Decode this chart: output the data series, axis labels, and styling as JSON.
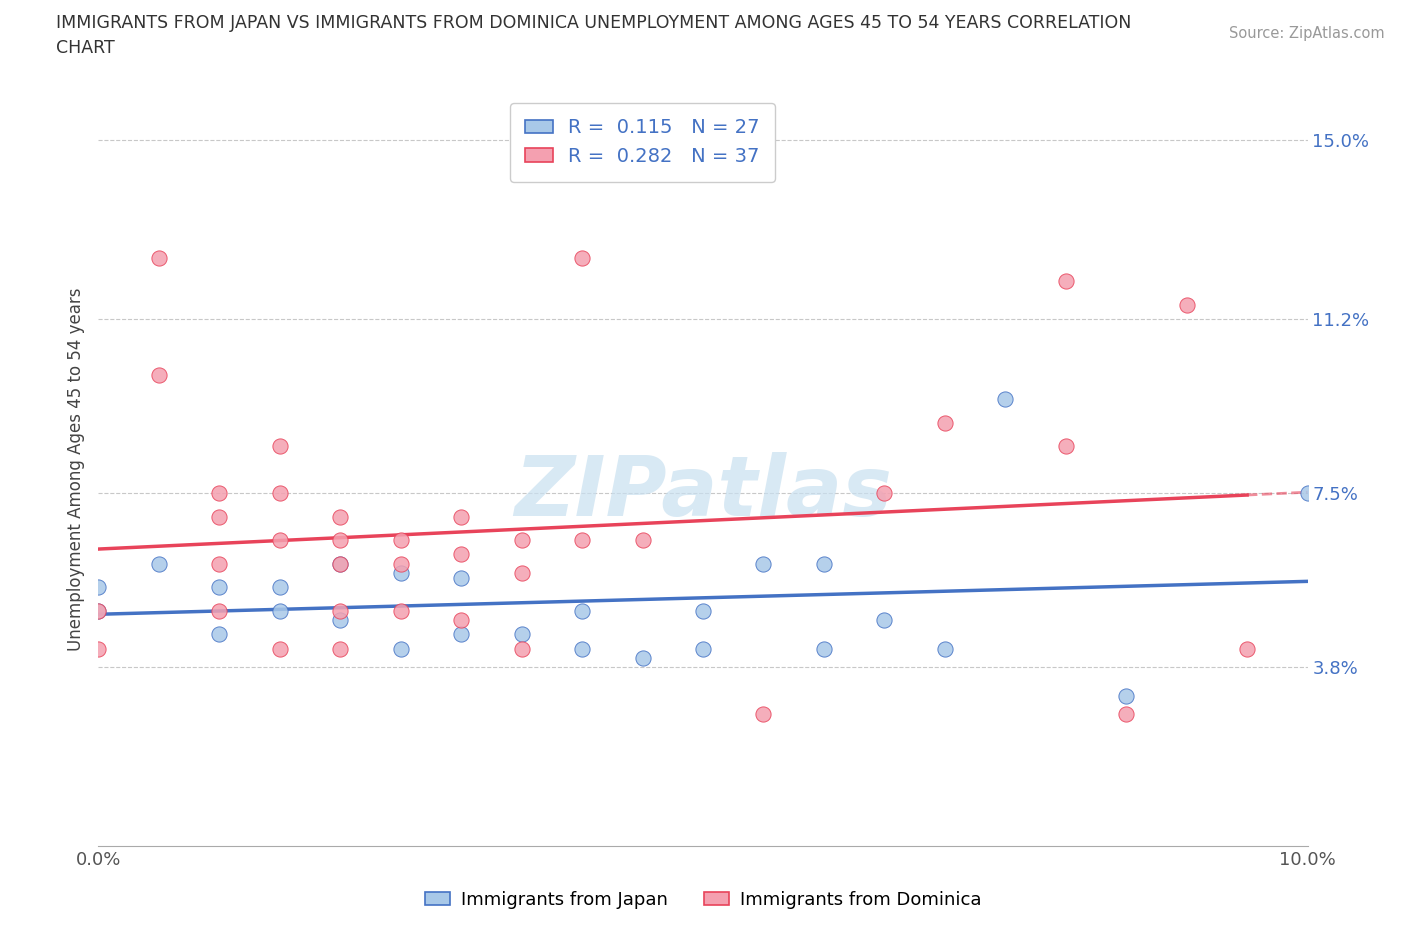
{
  "title_line1": "IMMIGRANTS FROM JAPAN VS IMMIGRANTS FROM DOMINICA UNEMPLOYMENT AMONG AGES 45 TO 54 YEARS CORRELATION",
  "title_line2": "CHART",
  "source": "Source: ZipAtlas.com",
  "ylabel": "Unemployment Among Ages 45 to 54 years",
  "xlim": [
    0.0,
    0.1
  ],
  "ylim": [
    0.0,
    0.16
  ],
  "xticks": [
    0.0,
    0.02,
    0.04,
    0.06,
    0.08,
    0.1
  ],
  "xticklabels": [
    "0.0%",
    "",
    "",
    "",
    "",
    "10.0%"
  ],
  "ytick_positions": [
    0.038,
    0.075,
    0.112,
    0.15
  ],
  "ytick_labels": [
    "3.8%",
    "7.5%",
    "11.2%",
    "15.0%"
  ],
  "japan_R": 0.115,
  "japan_N": 27,
  "dominica_R": 0.282,
  "dominica_N": 37,
  "japan_color": "#A8C8E8",
  "dominica_color": "#F4A0B0",
  "japan_edge_color": "#4472C4",
  "dominica_edge_color": "#E8435A",
  "japan_line_color": "#4472C4",
  "dominica_line_color": "#E8435A",
  "japan_scatter_x": [
    0.0,
    0.0,
    0.005,
    0.01,
    0.01,
    0.015,
    0.015,
    0.02,
    0.02,
    0.025,
    0.025,
    0.03,
    0.03,
    0.035,
    0.04,
    0.04,
    0.045,
    0.05,
    0.05,
    0.055,
    0.06,
    0.06,
    0.065,
    0.07,
    0.075,
    0.085,
    0.1
  ],
  "japan_scatter_y": [
    0.05,
    0.055,
    0.06,
    0.055,
    0.045,
    0.055,
    0.05,
    0.06,
    0.048,
    0.058,
    0.042,
    0.057,
    0.045,
    0.045,
    0.05,
    0.042,
    0.04,
    0.05,
    0.042,
    0.06,
    0.042,
    0.06,
    0.048,
    0.042,
    0.095,
    0.032,
    0.075
  ],
  "dominica_scatter_x": [
    0.0,
    0.0,
    0.005,
    0.005,
    0.01,
    0.01,
    0.01,
    0.01,
    0.015,
    0.015,
    0.015,
    0.015,
    0.02,
    0.02,
    0.02,
    0.02,
    0.02,
    0.025,
    0.025,
    0.025,
    0.03,
    0.03,
    0.03,
    0.035,
    0.035,
    0.035,
    0.04,
    0.04,
    0.045,
    0.055,
    0.065,
    0.07,
    0.08,
    0.08,
    0.085,
    0.09,
    0.095
  ],
  "dominica_scatter_y": [
    0.05,
    0.042,
    0.125,
    0.1,
    0.075,
    0.07,
    0.06,
    0.05,
    0.085,
    0.075,
    0.065,
    0.042,
    0.07,
    0.065,
    0.06,
    0.05,
    0.042,
    0.065,
    0.06,
    0.05,
    0.07,
    0.062,
    0.048,
    0.065,
    0.058,
    0.042,
    0.065,
    0.125,
    0.065,
    0.028,
    0.075,
    0.09,
    0.085,
    0.12,
    0.028,
    0.115,
    0.042
  ],
  "watermark_text": "ZIPatlas",
  "watermark_color": "#C8E0F0",
  "background_color": "#FFFFFF",
  "grid_color": "#C8C8C8",
  "legend_text_color": "#4472C4",
  "bottom_legend_japan": "Immigrants from Japan",
  "bottom_legend_dominica": "Immigrants from Dominica"
}
